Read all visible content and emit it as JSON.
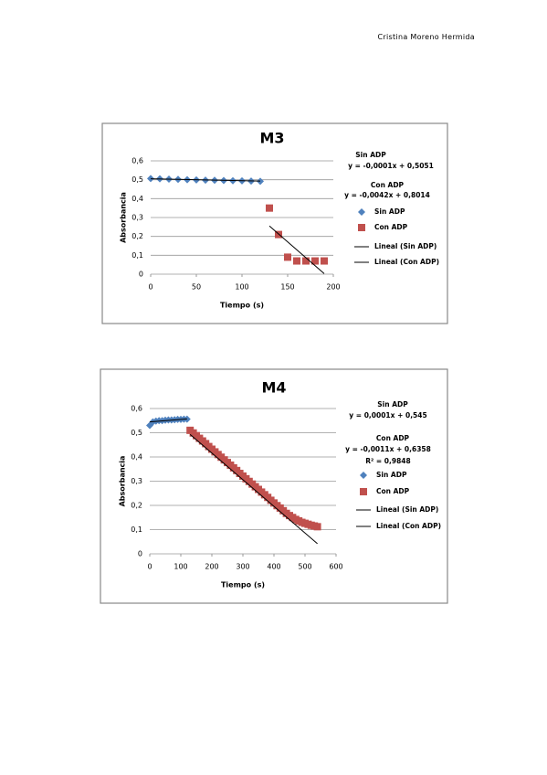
{
  "header": "Cristina Moreno Hermida",
  "chart_data": [
    {
      "type": "scatter",
      "title": "M3",
      "xlabel": "Tiempo (s)",
      "ylabel": "Absorbancia",
      "xlim": [
        0,
        200
      ],
      "xticks": [
        0,
        50,
        100,
        150,
        200
      ],
      "ylim": [
        0,
        0.6
      ],
      "yticks": [
        0,
        {
          "value": 0.1,
          "label": "0,1"
        },
        {
          "value": 0.2,
          "label": "0,2"
        },
        {
          "value": 0.3,
          "label": "0,3"
        },
        {
          "value": 0.4,
          "label": "0,4"
        },
        {
          "value": 0.5,
          "label": "0,5"
        },
        {
          "value": 0.6,
          "label": "0,6"
        }
      ],
      "grid": true,
      "annotations": [
        "Sin ADP",
        "y = -0,0001x + 0,5051",
        "Con ADP",
        "y = -0,0042x + 0,8014"
      ],
      "series": [
        {
          "name": "Sin ADP",
          "color": "#4f81bd",
          "marker": "diamond",
          "x": [
            0,
            10,
            20,
            30,
            40,
            50,
            60,
            70,
            80,
            90,
            100,
            110,
            120
          ],
          "values": [
            0.506,
            0.505,
            0.503,
            0.502,
            0.5,
            0.499,
            0.498,
            0.497,
            0.496,
            0.495,
            0.494,
            0.493,
            0.492
          ]
        },
        {
          "name": "Con ADP",
          "color": "#c0504d",
          "marker": "square",
          "x": [
            130,
            140,
            150,
            160,
            170,
            180,
            190
          ],
          "values": [
            0.35,
            0.21,
            0.09,
            0.07,
            0.07,
            0.07,
            0.07
          ]
        },
        {
          "name": "Lineal (Sin ADP)",
          "color": "#000000",
          "marker": "line",
          "x": [
            0,
            120
          ],
          "values": [
            0.505,
            0.493
          ]
        },
        {
          "name": "Lineal (Con ADP)",
          "color": "#000000",
          "marker": "line",
          "x": [
            130,
            190
          ],
          "values": [
            0.255,
            0.003
          ]
        }
      ]
    },
    {
      "type": "scatter",
      "title": "M4",
      "xlabel": "Tiempo (s)",
      "ylabel": "Absorbancia",
      "xlim": [
        0,
        600
      ],
      "xticks": [
        0,
        100,
        200,
        300,
        400,
        500,
        600
      ],
      "ylim": [
        0,
        0.6
      ],
      "yticks": [
        0,
        {
          "value": 0.1,
          "label": "0,1"
        },
        {
          "value": 0.2,
          "label": "0,2"
        },
        {
          "value": 0.3,
          "label": "0,3"
        },
        {
          "value": 0.4,
          "label": "0,4"
        },
        {
          "value": 0.5,
          "label": "0,5"
        },
        {
          "value": 0.6,
          "label": "0,6"
        }
      ],
      "grid": true,
      "annotations": [
        "Sin ADP",
        "y = 0,0001x + 0,545",
        "Con ADP",
        "y = -0,0011x + 0,6358",
        "R² = 0,9848"
      ],
      "series": [
        {
          "name": "Sin ADP",
          "color": "#4f81bd",
          "marker": "diamond",
          "x": [
            0,
            10,
            20,
            30,
            40,
            50,
            60,
            70,
            80,
            90,
            100,
            110,
            120
          ],
          "values": [
            0.53,
            0.545,
            0.548,
            0.55,
            0.55,
            0.552,
            0.553,
            0.553,
            0.554,
            0.555,
            0.555,
            0.556,
            0.556
          ]
        },
        {
          "name": "Con ADP",
          "color": "#c0504d",
          "marker": "square",
          "x": [
            130,
            140,
            150,
            160,
            170,
            180,
            190,
            200,
            210,
            220,
            230,
            240,
            250,
            260,
            270,
            280,
            290,
            300,
            310,
            320,
            330,
            340,
            350,
            360,
            370,
            380,
            390,
            400,
            410,
            420,
            430,
            440,
            450,
            460,
            470,
            480,
            490,
            500,
            510,
            520,
            530,
            540
          ],
          "values": [
            0.51,
            0.499,
            0.488,
            0.477,
            0.466,
            0.455,
            0.443,
            0.432,
            0.421,
            0.41,
            0.399,
            0.388,
            0.377,
            0.366,
            0.355,
            0.344,
            0.332,
            0.321,
            0.31,
            0.299,
            0.288,
            0.277,
            0.266,
            0.255,
            0.244,
            0.233,
            0.221,
            0.21,
            0.199,
            0.189,
            0.178,
            0.167,
            0.158,
            0.15,
            0.142,
            0.136,
            0.13,
            0.126,
            0.122,
            0.118,
            0.115,
            0.112
          ]
        },
        {
          "name": "Lineal (Sin ADP)",
          "color": "#000000",
          "marker": "line",
          "x": [
            0,
            120
          ],
          "values": [
            0.545,
            0.557
          ]
        },
        {
          "name": "Lineal (Con ADP)",
          "color": "#000000",
          "marker": "line",
          "x": [
            130,
            540
          ],
          "values": [
            0.493,
            0.042
          ]
        }
      ]
    }
  ]
}
